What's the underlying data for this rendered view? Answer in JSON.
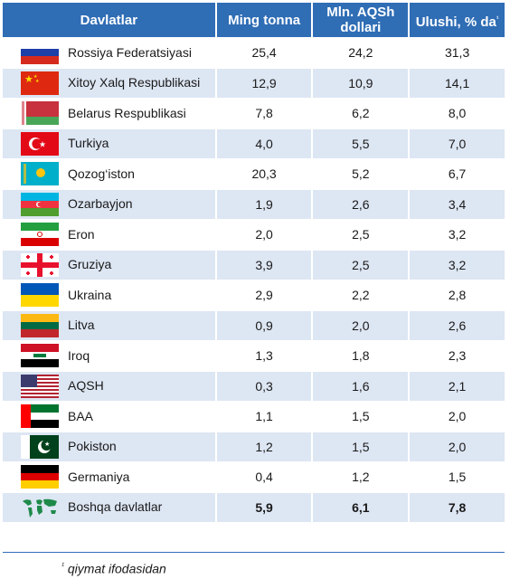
{
  "headers": {
    "country": "Davlatlar",
    "tonnes": "Ming tonna",
    "usd": "Mln. AQSh dollari",
    "share": "Ulushi, % da",
    "share_sup": "¹"
  },
  "rows": [
    {
      "name": "Rossiya Federatsiyasi",
      "flag": "russia-flag-icon",
      "tonnes": "25,4",
      "usd": "24,2",
      "share": "31,3"
    },
    {
      "name": "Xitoy Xalq Respublikasi",
      "flag": "china-flag-icon",
      "tonnes": "12,9",
      "usd": "10,9",
      "share": "14,1"
    },
    {
      "name": "Belarus Respublikasi",
      "flag": "belarus-flag-icon",
      "tonnes": "7,8",
      "usd": "6,2",
      "share": "8,0"
    },
    {
      "name": "Turkiya",
      "flag": "turkey-flag-icon",
      "tonnes": "4,0",
      "usd": "5,5",
      "share": "7,0"
    },
    {
      "name": "Qozog‘iston",
      "flag": "kazakhstan-flag-icon",
      "tonnes": "20,3",
      "usd": "5,2",
      "share": "6,7"
    },
    {
      "name": "Ozarbayjon",
      "flag": "azerbaijan-flag-icon",
      "tonnes": "1,9",
      "usd": "2,6",
      "share": "3,4"
    },
    {
      "name": "Eron",
      "flag": "iran-flag-icon",
      "tonnes": "2,0",
      "usd": "2,5",
      "share": "3,2"
    },
    {
      "name": "Gruziya",
      "flag": "georgia-flag-icon",
      "tonnes": "3,9",
      "usd": "2,5",
      "share": "3,2"
    },
    {
      "name": "Ukraina",
      "flag": "ukraine-flag-icon",
      "tonnes": "2,9",
      "usd": "2,2",
      "share": "2,8"
    },
    {
      "name": "Litva",
      "flag": "lithuania-flag-icon",
      "tonnes": "0,9",
      "usd": "2,0",
      "share": "2,6"
    },
    {
      "name": "Iroq",
      "flag": "iraq-flag-icon",
      "tonnes": "1,3",
      "usd": "1,8",
      "share": "2,3"
    },
    {
      "name": "AQSH",
      "flag": "usa-flag-icon",
      "tonnes": "0,3",
      "usd": "1,6",
      "share": "2,1"
    },
    {
      "name": "BAA",
      "flag": "uae-flag-icon",
      "tonnes": "1,1",
      "usd": "1,5",
      "share": "2,0"
    },
    {
      "name": "Pokiston",
      "flag": "pakistan-flag-icon",
      "tonnes": "1,2",
      "usd": "1,5",
      "share": "2,0"
    },
    {
      "name": "Germaniya",
      "flag": "germany-flag-icon",
      "tonnes": "0,4",
      "usd": "1,2",
      "share": "1,5"
    },
    {
      "name": "Boshqa davlatlar",
      "flag": "world-map-icon",
      "tonnes": "5,9",
      "usd": "6,1",
      "share": "7,8"
    }
  ],
  "footnote": {
    "sup": "¹",
    "text": "qiymat ifodasidan"
  },
  "colors": {
    "header": "#2f6db5",
    "stripe": "#dde6f3"
  }
}
